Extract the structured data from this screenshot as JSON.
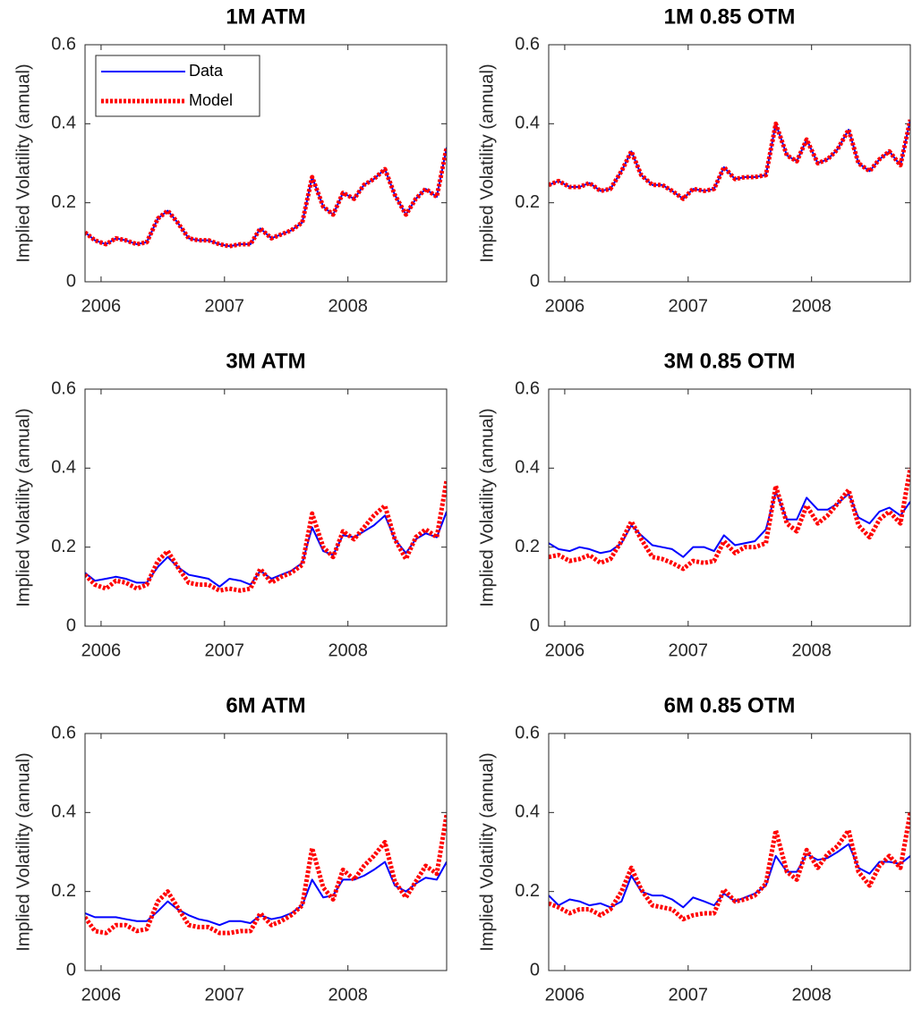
{
  "chart_data": [
    {
      "type": "line",
      "title": "1M ATM",
      "ylabel": "Implied Volatility (annual)",
      "legend": "upper left",
      "x": [
        2005.87,
        2005.95,
        2006.04,
        2006.12,
        2006.2,
        2006.29,
        2006.37,
        2006.46,
        2006.54,
        2006.62,
        2006.71,
        2006.79,
        2006.87,
        2006.96,
        2007.04,
        2007.13,
        2007.21,
        2007.29,
        2007.38,
        2007.46,
        2007.54,
        2007.63,
        2007.71,
        2007.8,
        2007.88,
        2007.96,
        2008.05,
        2008.13,
        2008.21,
        2008.3,
        2008.38,
        2008.47,
        2008.55,
        2008.63,
        2008.72,
        2008.8
      ],
      "xlim": [
        2005.87,
        2008.8
      ],
      "xticks": [
        2006,
        2007,
        2008
      ],
      "ylim": [
        0,
        0.6
      ],
      "yticks": [
        0,
        0.2,
        0.4,
        0.6
      ],
      "series": [
        {
          "name": "Data",
          "color": "#0000ff",
          "style": "solid",
          "values": [
            0.125,
            0.105,
            0.095,
            0.11,
            0.105,
            0.095,
            0.1,
            0.16,
            0.18,
            0.15,
            0.11,
            0.105,
            0.105,
            0.095,
            0.09,
            0.095,
            0.095,
            0.135,
            0.11,
            0.12,
            0.13,
            0.15,
            0.265,
            0.19,
            0.17,
            0.225,
            0.21,
            0.245,
            0.26,
            0.285,
            0.22,
            0.17,
            0.21,
            0.235,
            0.215,
            0.34
          ]
        },
        {
          "name": "Model",
          "color": "#ff0000",
          "style": "dotted",
          "values": [
            0.125,
            0.105,
            0.095,
            0.11,
            0.105,
            0.095,
            0.1,
            0.16,
            0.18,
            0.15,
            0.11,
            0.105,
            0.105,
            0.095,
            0.09,
            0.095,
            0.095,
            0.135,
            0.11,
            0.12,
            0.13,
            0.15,
            0.265,
            0.19,
            0.17,
            0.225,
            0.21,
            0.245,
            0.26,
            0.285,
            0.22,
            0.17,
            0.21,
            0.235,
            0.215,
            0.34
          ]
        }
      ]
    },
    {
      "type": "line",
      "title": "1M 0.85 OTM",
      "ylabel": "Implied Volatility (annual)",
      "x": [
        2005.87,
        2005.95,
        2006.04,
        2006.12,
        2006.2,
        2006.29,
        2006.37,
        2006.46,
        2006.54,
        2006.62,
        2006.71,
        2006.79,
        2006.87,
        2006.96,
        2007.04,
        2007.13,
        2007.21,
        2007.29,
        2007.38,
        2007.46,
        2007.54,
        2007.63,
        2007.71,
        2007.8,
        2007.88,
        2007.96,
        2008.05,
        2008.13,
        2008.21,
        2008.3,
        2008.38,
        2008.47,
        2008.55,
        2008.63,
        2008.72,
        2008.8
      ],
      "xlim": [
        2005.87,
        2008.8
      ],
      "xticks": [
        2006,
        2007,
        2008
      ],
      "ylim": [
        0,
        0.6
      ],
      "yticks": [
        0,
        0.2,
        0.4,
        0.6
      ],
      "series": [
        {
          "color": "#0000ff",
          "style": "solid",
          "values": [
            0.245,
            0.255,
            0.24,
            0.24,
            0.25,
            0.23,
            0.235,
            0.28,
            0.33,
            0.27,
            0.245,
            0.245,
            0.23,
            0.21,
            0.235,
            0.23,
            0.235,
            0.29,
            0.26,
            0.265,
            0.265,
            0.27,
            0.4,
            0.32,
            0.305,
            0.36,
            0.3,
            0.31,
            0.335,
            0.385,
            0.3,
            0.28,
            0.31,
            0.33,
            0.295,
            0.41
          ]
        },
        {
          "color": "#ff0000",
          "style": "dotted",
          "values": [
            0.245,
            0.255,
            0.24,
            0.24,
            0.25,
            0.23,
            0.235,
            0.28,
            0.33,
            0.27,
            0.245,
            0.245,
            0.23,
            0.21,
            0.235,
            0.23,
            0.235,
            0.29,
            0.26,
            0.265,
            0.265,
            0.27,
            0.4,
            0.32,
            0.305,
            0.36,
            0.3,
            0.31,
            0.335,
            0.385,
            0.3,
            0.28,
            0.31,
            0.33,
            0.295,
            0.41
          ]
        }
      ]
    },
    {
      "type": "line",
      "title": "3M ATM",
      "ylabel": "Implied Volatility (annual)",
      "x": [
        2005.87,
        2005.95,
        2006.04,
        2006.12,
        2006.2,
        2006.29,
        2006.37,
        2006.46,
        2006.54,
        2006.62,
        2006.71,
        2006.79,
        2006.87,
        2006.96,
        2007.04,
        2007.13,
        2007.21,
        2007.29,
        2007.38,
        2007.46,
        2007.54,
        2007.63,
        2007.71,
        2007.8,
        2007.88,
        2007.96,
        2008.05,
        2008.13,
        2008.21,
        2008.3,
        2008.38,
        2008.47,
        2008.55,
        2008.63,
        2008.72,
        2008.8
      ],
      "xlim": [
        2005.87,
        2008.8
      ],
      "xticks": [
        2006,
        2007,
        2008
      ],
      "ylim": [
        0,
        0.6
      ],
      "yticks": [
        0,
        0.2,
        0.4,
        0.6
      ],
      "series": [
        {
          "color": "#0000ff",
          "style": "solid",
          "values": [
            0.135,
            0.115,
            0.12,
            0.125,
            0.12,
            0.11,
            0.11,
            0.15,
            0.175,
            0.15,
            0.13,
            0.125,
            0.12,
            0.1,
            0.12,
            0.115,
            0.105,
            0.14,
            0.12,
            0.13,
            0.14,
            0.16,
            0.25,
            0.19,
            0.18,
            0.23,
            0.225,
            0.24,
            0.255,
            0.28,
            0.22,
            0.185,
            0.22,
            0.235,
            0.225,
            0.29
          ]
        },
        {
          "color": "#ff0000",
          "style": "dotted",
          "values": [
            0.13,
            0.105,
            0.095,
            0.115,
            0.11,
            0.095,
            0.105,
            0.165,
            0.19,
            0.15,
            0.11,
            0.105,
            0.105,
            0.09,
            0.095,
            0.09,
            0.095,
            0.145,
            0.11,
            0.125,
            0.135,
            0.155,
            0.285,
            0.2,
            0.175,
            0.24,
            0.22,
            0.25,
            0.28,
            0.305,
            0.22,
            0.17,
            0.225,
            0.245,
            0.225,
            0.37
          ]
        }
      ]
    },
    {
      "type": "line",
      "title": "3M 0.85 OTM",
      "ylabel": "Implied Volatility (annual)",
      "x": [
        2005.87,
        2005.95,
        2006.04,
        2006.12,
        2006.2,
        2006.29,
        2006.37,
        2006.46,
        2006.54,
        2006.62,
        2006.71,
        2006.79,
        2006.87,
        2006.96,
        2007.04,
        2007.13,
        2007.21,
        2007.29,
        2007.38,
        2007.46,
        2007.54,
        2007.63,
        2007.71,
        2007.8,
        2007.88,
        2007.96,
        2008.05,
        2008.13,
        2008.21,
        2008.3,
        2008.38,
        2008.47,
        2008.55,
        2008.63,
        2008.72,
        2008.8
      ],
      "xlim": [
        2005.87,
        2008.8
      ],
      "xticks": [
        2006,
        2007,
        2008
      ],
      "ylim": [
        0,
        0.6
      ],
      "yticks": [
        0,
        0.2,
        0.4,
        0.6
      ],
      "series": [
        {
          "color": "#0000ff",
          "style": "solid",
          "values": [
            0.21,
            0.195,
            0.19,
            0.2,
            0.195,
            0.185,
            0.19,
            0.21,
            0.255,
            0.23,
            0.205,
            0.2,
            0.195,
            0.175,
            0.2,
            0.2,
            0.19,
            0.23,
            0.205,
            0.21,
            0.215,
            0.245,
            0.34,
            0.27,
            0.27,
            0.325,
            0.295,
            0.295,
            0.31,
            0.335,
            0.275,
            0.26,
            0.29,
            0.3,
            0.28,
            0.315
          ]
        },
        {
          "color": "#ff0000",
          "style": "dotted",
          "values": [
            0.175,
            0.18,
            0.165,
            0.17,
            0.18,
            0.16,
            0.17,
            0.215,
            0.265,
            0.22,
            0.175,
            0.17,
            0.16,
            0.145,
            0.165,
            0.16,
            0.165,
            0.215,
            0.185,
            0.2,
            0.2,
            0.21,
            0.355,
            0.26,
            0.24,
            0.305,
            0.26,
            0.28,
            0.31,
            0.345,
            0.255,
            0.225,
            0.27,
            0.29,
            0.26,
            0.4
          ]
        }
      ]
    },
    {
      "type": "line",
      "title": "6M ATM",
      "ylabel": "Implied Volatility (annual)",
      "x": [
        2005.87,
        2005.95,
        2006.04,
        2006.12,
        2006.2,
        2006.29,
        2006.37,
        2006.46,
        2006.54,
        2006.62,
        2006.71,
        2006.79,
        2006.87,
        2006.96,
        2007.04,
        2007.13,
        2007.21,
        2007.29,
        2007.38,
        2007.46,
        2007.54,
        2007.63,
        2007.71,
        2007.8,
        2007.88,
        2007.96,
        2008.05,
        2008.13,
        2008.21,
        2008.3,
        2008.38,
        2008.47,
        2008.55,
        2008.63,
        2008.72,
        2008.8
      ],
      "xlim": [
        2005.87,
        2008.8
      ],
      "xticks": [
        2006,
        2007,
        2008
      ],
      "ylim": [
        0,
        0.6
      ],
      "yticks": [
        0,
        0.2,
        0.4,
        0.6
      ],
      "series": [
        {
          "color": "#0000ff",
          "style": "solid",
          "values": [
            0.145,
            0.135,
            0.135,
            0.135,
            0.13,
            0.125,
            0.125,
            0.15,
            0.175,
            0.155,
            0.14,
            0.13,
            0.125,
            0.115,
            0.125,
            0.125,
            0.12,
            0.14,
            0.13,
            0.135,
            0.145,
            0.165,
            0.23,
            0.185,
            0.19,
            0.23,
            0.23,
            0.24,
            0.255,
            0.275,
            0.215,
            0.2,
            0.22,
            0.235,
            0.23,
            0.275
          ]
        },
        {
          "color": "#ff0000",
          "style": "dotted",
          "values": [
            0.135,
            0.1,
            0.095,
            0.115,
            0.115,
            0.1,
            0.105,
            0.175,
            0.2,
            0.16,
            0.115,
            0.11,
            0.11,
            0.095,
            0.095,
            0.1,
            0.1,
            0.145,
            0.115,
            0.125,
            0.14,
            0.165,
            0.31,
            0.21,
            0.18,
            0.255,
            0.23,
            0.265,
            0.29,
            0.325,
            0.225,
            0.185,
            0.225,
            0.265,
            0.245,
            0.395
          ]
        }
      ]
    },
    {
      "type": "line",
      "title": "6M 0.85 OTM",
      "ylabel": "Implied Volatility (annual)",
      "x": [
        2005.87,
        2005.95,
        2006.04,
        2006.12,
        2006.2,
        2006.29,
        2006.37,
        2006.46,
        2006.54,
        2006.62,
        2006.71,
        2006.79,
        2006.87,
        2006.96,
        2007.04,
        2007.13,
        2007.21,
        2007.29,
        2007.38,
        2007.46,
        2007.54,
        2007.63,
        2007.71,
        2007.8,
        2007.88,
        2007.96,
        2008.05,
        2008.13,
        2008.21,
        2008.3,
        2008.38,
        2008.47,
        2008.55,
        2008.63,
        2008.72,
        2008.8
      ],
      "xlim": [
        2005.87,
        2008.8
      ],
      "xticks": [
        2006,
        2007,
        2008
      ],
      "ylim": [
        0,
        0.6
      ],
      "yticks": [
        0,
        0.2,
        0.4,
        0.6
      ],
      "series": [
        {
          "color": "#0000ff",
          "style": "solid",
          "values": [
            0.19,
            0.165,
            0.18,
            0.175,
            0.165,
            0.17,
            0.16,
            0.175,
            0.24,
            0.2,
            0.19,
            0.19,
            0.18,
            0.16,
            0.185,
            0.175,
            0.165,
            0.195,
            0.175,
            0.185,
            0.195,
            0.215,
            0.29,
            0.25,
            0.25,
            0.295,
            0.28,
            0.285,
            0.3,
            0.32,
            0.26,
            0.245,
            0.275,
            0.275,
            0.27,
            0.29
          ]
        },
        {
          "color": "#ff0000",
          "style": "dotted",
          "values": [
            0.17,
            0.16,
            0.145,
            0.155,
            0.155,
            0.14,
            0.155,
            0.2,
            0.26,
            0.205,
            0.165,
            0.16,
            0.155,
            0.13,
            0.14,
            0.145,
            0.145,
            0.205,
            0.175,
            0.18,
            0.19,
            0.22,
            0.355,
            0.25,
            0.23,
            0.305,
            0.26,
            0.295,
            0.315,
            0.355,
            0.25,
            0.215,
            0.265,
            0.29,
            0.26,
            0.4
          ]
        }
      ]
    }
  ]
}
